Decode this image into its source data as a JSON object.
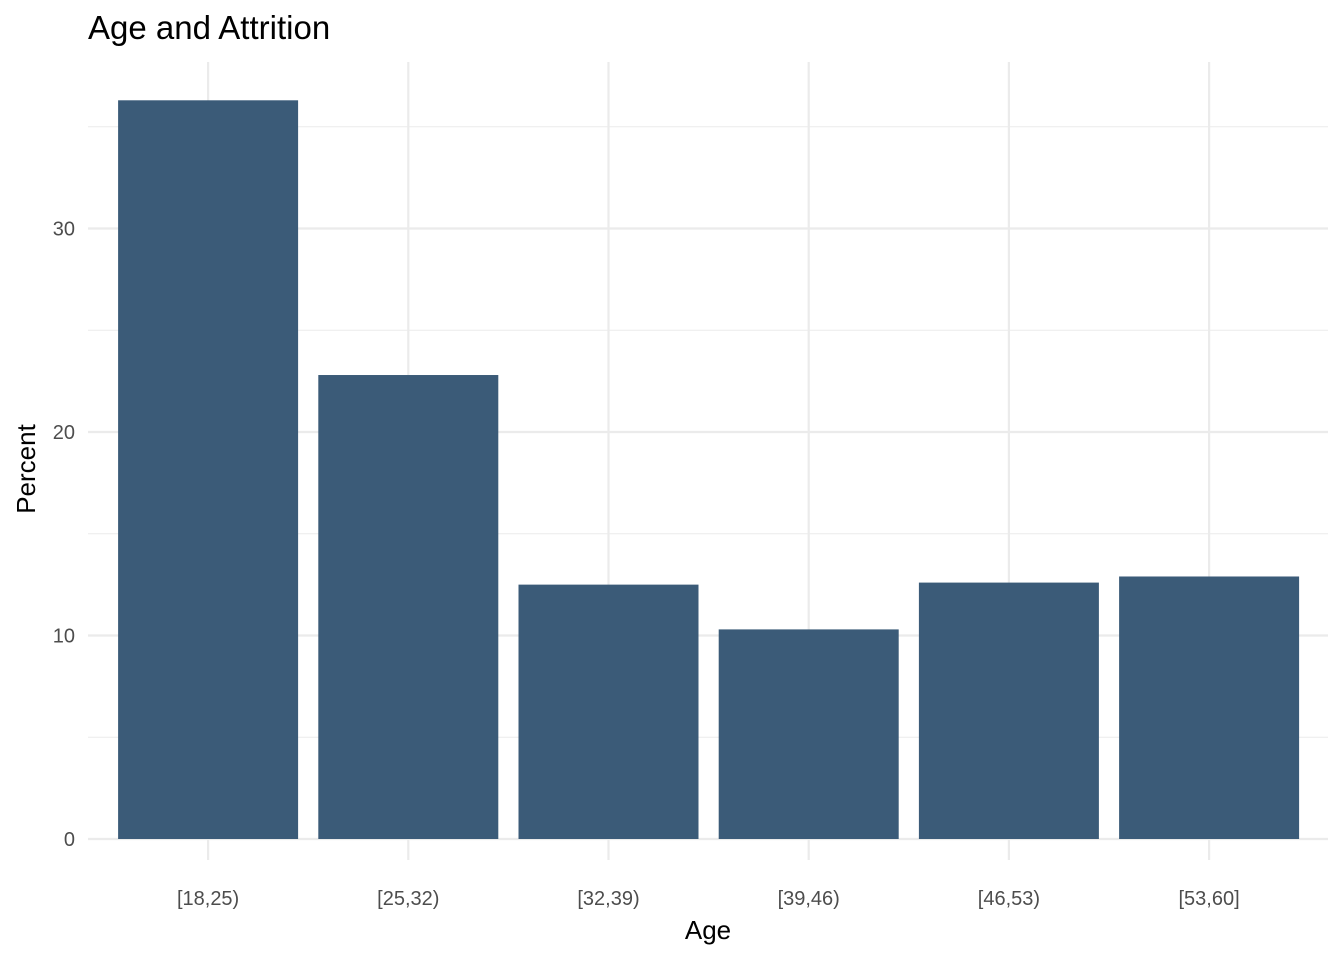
{
  "chart_data": {
    "type": "bar",
    "title": "Age and Attrition",
    "xlabel": "Age",
    "ylabel": "Percent",
    "categories": [
      "[18,25)",
      "[25,32)",
      "[32,39)",
      "[39,46)",
      "[46,53)",
      "[53,60]"
    ],
    "values": [
      36.3,
      22.8,
      12.5,
      10.3,
      12.6,
      12.9
    ],
    "ylim": [
      0,
      37.9
    ],
    "y_ticks": [
      0,
      10,
      20,
      30
    ],
    "y_tick_labels": [
      "0",
      "10",
      "20",
      "30"
    ],
    "grid": true,
    "bar_color": "#3b5b78",
    "grid_color": "#ebebeb"
  }
}
